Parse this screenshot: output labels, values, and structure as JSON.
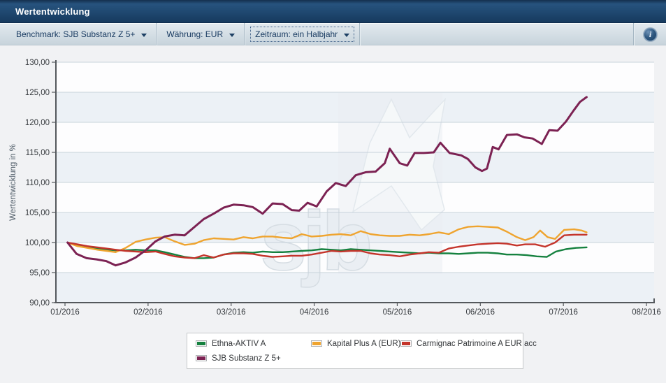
{
  "titlebar": {
    "title": "Wertentwicklung"
  },
  "toolbar": {
    "dropdowns": [
      {
        "label": "Benchmark: SJB Substanz Z 5+"
      },
      {
        "label": "Währung: EUR"
      },
      {
        "label": "Zeitraum: ein Halbjahr",
        "focused": true
      }
    ],
    "info_label": "i"
  },
  "colors": {
    "band_light": "#ecf1f6",
    "band_white": "#fdfdfe",
    "gridline": "#c7d2db",
    "axis": "#54585c",
    "tick_text": "#35393d",
    "axis_title": "#4d5a66",
    "watermark_tile": "#e9eef2",
    "watermark_star": "#f6f8fa",
    "watermark_text": "#e7ecf1",
    "legend_border": "#c6c8ca"
  },
  "chart_data": {
    "type": "line",
    "ylabel": "Wertentwicklung in %",
    "ylim": [
      90,
      130
    ],
    "ytick_step": 5,
    "ytick_labels": [
      "90,00",
      "95,00",
      "100,00",
      "105,00",
      "110,00",
      "115,00",
      "120,00",
      "125,00",
      "130,00"
    ],
    "xtick_labels": [
      "01/2016",
      "02/2016",
      "03/2016",
      "04/2016",
      "05/2016",
      "06/2016",
      "07/2016",
      "08/2016"
    ],
    "x_unit": "months since 01/2016 tick",
    "grid": true,
    "plot_bands": "alternating horizontal stripes every 5 units",
    "legend_position": "bottom",
    "watermark": "sjb",
    "series": [
      {
        "name": "Ethna-AKTIV A",
        "color": "#15813f",
        "points": [
          [
            0.03,
            100.0
          ],
          [
            0.15,
            99.5
          ],
          [
            0.27,
            99.2
          ],
          [
            0.39,
            99.0
          ],
          [
            0.5,
            98.8
          ],
          [
            0.61,
            98.7
          ],
          [
            0.73,
            98.7
          ],
          [
            0.85,
            98.8
          ],
          [
            0.97,
            98.7
          ],
          [
            1.09,
            98.7
          ],
          [
            1.2,
            98.4
          ],
          [
            1.32,
            98.0
          ],
          [
            1.44,
            97.6
          ],
          [
            1.56,
            97.4
          ],
          [
            1.67,
            97.4
          ],
          [
            1.79,
            97.5
          ],
          [
            1.91,
            98.0
          ],
          [
            2.03,
            98.3
          ],
          [
            2.15,
            98.4
          ],
          [
            2.26,
            98.3
          ],
          [
            2.38,
            98.5
          ],
          [
            2.5,
            98.4
          ],
          [
            2.62,
            98.4
          ],
          [
            2.73,
            98.5
          ],
          [
            2.85,
            98.6
          ],
          [
            2.97,
            98.7
          ],
          [
            3.09,
            98.9
          ],
          [
            3.21,
            98.8
          ],
          [
            3.32,
            98.7
          ],
          [
            3.44,
            98.9
          ],
          [
            3.56,
            98.8
          ],
          [
            3.68,
            98.7
          ],
          [
            3.79,
            98.6
          ],
          [
            3.91,
            98.5
          ],
          [
            4.03,
            98.4
          ],
          [
            4.15,
            98.3
          ],
          [
            4.27,
            98.2
          ],
          [
            4.38,
            98.3
          ],
          [
            4.5,
            98.2
          ],
          [
            4.62,
            98.2
          ],
          [
            4.74,
            98.1
          ],
          [
            4.85,
            98.2
          ],
          [
            4.97,
            98.3
          ],
          [
            5.09,
            98.3
          ],
          [
            5.21,
            98.2
          ],
          [
            5.32,
            98.0
          ],
          [
            5.44,
            98.0
          ],
          [
            5.56,
            97.9
          ],
          [
            5.68,
            97.7
          ],
          [
            5.8,
            97.6
          ],
          [
            5.91,
            98.5
          ],
          [
            6.03,
            98.9
          ],
          [
            6.15,
            99.1
          ],
          [
            6.28,
            99.2
          ]
        ]
      },
      {
        "name": "Kapital Plus A (EUR)",
        "color": "#efa42f",
        "points": [
          [
            0.03,
            100.0
          ],
          [
            0.15,
            99.4
          ],
          [
            0.27,
            99.1
          ],
          [
            0.39,
            98.8
          ],
          [
            0.5,
            98.6
          ],
          [
            0.61,
            98.4
          ],
          [
            0.73,
            99.1
          ],
          [
            0.85,
            100.1
          ],
          [
            0.97,
            100.5
          ],
          [
            1.09,
            100.8
          ],
          [
            1.2,
            100.9
          ],
          [
            1.32,
            100.2
          ],
          [
            1.44,
            99.6
          ],
          [
            1.56,
            99.8
          ],
          [
            1.67,
            100.4
          ],
          [
            1.79,
            100.7
          ],
          [
            1.91,
            100.6
          ],
          [
            2.03,
            100.5
          ],
          [
            2.15,
            100.9
          ],
          [
            2.26,
            100.7
          ],
          [
            2.38,
            101.0
          ],
          [
            2.5,
            101.0
          ],
          [
            2.62,
            100.8
          ],
          [
            2.73,
            100.7
          ],
          [
            2.85,
            101.4
          ],
          [
            2.97,
            101.0
          ],
          [
            3.09,
            101.1
          ],
          [
            3.21,
            101.3
          ],
          [
            3.32,
            101.4
          ],
          [
            3.44,
            101.2
          ],
          [
            3.56,
            101.9
          ],
          [
            3.68,
            101.4
          ],
          [
            3.79,
            101.2
          ],
          [
            3.91,
            101.1
          ],
          [
            4.03,
            101.1
          ],
          [
            4.15,
            101.3
          ],
          [
            4.27,
            101.2
          ],
          [
            4.38,
            101.4
          ],
          [
            4.5,
            101.7
          ],
          [
            4.62,
            101.4
          ],
          [
            4.74,
            102.2
          ],
          [
            4.85,
            102.6
          ],
          [
            4.97,
            102.7
          ],
          [
            5.09,
            102.6
          ],
          [
            5.21,
            102.5
          ],
          [
            5.32,
            101.8
          ],
          [
            5.44,
            100.9
          ],
          [
            5.54,
            100.4
          ],
          [
            5.64,
            100.9
          ],
          [
            5.72,
            102.0
          ],
          [
            5.81,
            100.9
          ],
          [
            5.9,
            100.6
          ],
          [
            6.01,
            102.1
          ],
          [
            6.13,
            102.2
          ],
          [
            6.22,
            102.0
          ],
          [
            6.28,
            101.7
          ]
        ]
      },
      {
        "name": "Carmignac Patrimoine A EUR acc",
        "color": "#c4342b",
        "points": [
          [
            0.03,
            100.0
          ],
          [
            0.15,
            99.7
          ],
          [
            0.27,
            99.4
          ],
          [
            0.39,
            99.2
          ],
          [
            0.5,
            99.0
          ],
          [
            0.61,
            98.8
          ],
          [
            0.73,
            98.6
          ],
          [
            0.85,
            98.5
          ],
          [
            0.97,
            98.4
          ],
          [
            1.09,
            98.5
          ],
          [
            1.2,
            98.1
          ],
          [
            1.32,
            97.7
          ],
          [
            1.44,
            97.5
          ],
          [
            1.56,
            97.4
          ],
          [
            1.67,
            97.9
          ],
          [
            1.79,
            97.5
          ],
          [
            1.91,
            98.0
          ],
          [
            2.03,
            98.2
          ],
          [
            2.15,
            98.2
          ],
          [
            2.26,
            98.1
          ],
          [
            2.38,
            97.8
          ],
          [
            2.5,
            97.6
          ],
          [
            2.62,
            97.7
          ],
          [
            2.73,
            97.8
          ],
          [
            2.85,
            97.8
          ],
          [
            2.97,
            98.0
          ],
          [
            3.09,
            98.3
          ],
          [
            3.21,
            98.6
          ],
          [
            3.32,
            98.5
          ],
          [
            3.44,
            98.6
          ],
          [
            3.56,
            98.6
          ],
          [
            3.68,
            98.2
          ],
          [
            3.79,
            98.0
          ],
          [
            3.91,
            97.9
          ],
          [
            4.03,
            97.7
          ],
          [
            4.15,
            98.0
          ],
          [
            4.27,
            98.2
          ],
          [
            4.38,
            98.4
          ],
          [
            4.5,
            98.3
          ],
          [
            4.62,
            99.0
          ],
          [
            4.74,
            99.3
          ],
          [
            4.85,
            99.5
          ],
          [
            4.97,
            99.7
          ],
          [
            5.09,
            99.8
          ],
          [
            5.21,
            99.9
          ],
          [
            5.32,
            99.8
          ],
          [
            5.44,
            99.5
          ],
          [
            5.54,
            99.7
          ],
          [
            5.66,
            99.7
          ],
          [
            5.78,
            99.3
          ],
          [
            5.9,
            100.0
          ],
          [
            6.01,
            101.2
          ],
          [
            6.13,
            101.3
          ],
          [
            6.28,
            101.3
          ]
        ]
      },
      {
        "name": "SJB Substanz Z 5+",
        "color": "#7c2253",
        "points": [
          [
            0.03,
            100.0
          ],
          [
            0.14,
            98.1
          ],
          [
            0.26,
            97.4
          ],
          [
            0.38,
            97.2
          ],
          [
            0.5,
            96.9
          ],
          [
            0.61,
            96.2
          ],
          [
            0.73,
            96.7
          ],
          [
            0.85,
            97.5
          ],
          [
            0.97,
            98.7
          ],
          [
            1.09,
            100.2
          ],
          [
            1.2,
            101.0
          ],
          [
            1.32,
            101.3
          ],
          [
            1.44,
            101.2
          ],
          [
            1.56,
            102.6
          ],
          [
            1.67,
            103.9
          ],
          [
            1.79,
            104.8
          ],
          [
            1.91,
            105.8
          ],
          [
            2.03,
            106.3
          ],
          [
            2.15,
            106.2
          ],
          [
            2.26,
            105.9
          ],
          [
            2.38,
            104.8
          ],
          [
            2.5,
            106.5
          ],
          [
            2.62,
            106.4
          ],
          [
            2.73,
            105.4
          ],
          [
            2.82,
            105.3
          ],
          [
            2.92,
            106.6
          ],
          [
            3.03,
            106.0
          ],
          [
            3.15,
            108.5
          ],
          [
            3.26,
            109.9
          ],
          [
            3.38,
            109.4
          ],
          [
            3.5,
            111.2
          ],
          [
            3.62,
            111.7
          ],
          [
            3.74,
            111.8
          ],
          [
            3.85,
            113.2
          ],
          [
            3.91,
            115.6
          ],
          [
            4.03,
            113.2
          ],
          [
            4.12,
            112.8
          ],
          [
            4.21,
            114.9
          ],
          [
            4.32,
            114.9
          ],
          [
            4.44,
            115.0
          ],
          [
            4.52,
            116.6
          ],
          [
            4.63,
            114.9
          ],
          [
            4.77,
            114.5
          ],
          [
            4.85,
            113.9
          ],
          [
            4.94,
            112.5
          ],
          [
            5.02,
            111.9
          ],
          [
            5.08,
            112.3
          ],
          [
            5.15,
            115.9
          ],
          [
            5.22,
            115.5
          ],
          [
            5.32,
            117.9
          ],
          [
            5.44,
            118.0
          ],
          [
            5.53,
            117.5
          ],
          [
            5.63,
            117.3
          ],
          [
            5.74,
            116.4
          ],
          [
            5.83,
            118.7
          ],
          [
            5.93,
            118.6
          ],
          [
            6.03,
            120.1
          ],
          [
            6.12,
            121.9
          ],
          [
            6.2,
            123.4
          ],
          [
            6.28,
            124.2
          ]
        ]
      }
    ]
  }
}
